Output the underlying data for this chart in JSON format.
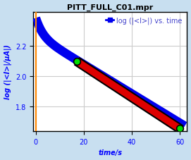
{
  "title": "PITT_FULL_C01.mpr",
  "legend_label": "log (|<I>|) vs. time",
  "xlabel": "time/s",
  "ylabel": "log (|<I>|/µA|)",
  "xlim": [
    -1,
    63
  ],
  "ylim": [
    1.64,
    2.42
  ],
  "yticks": [
    1.8,
    2.0,
    2.2
  ],
  "xticks": [
    0,
    20,
    40,
    60
  ],
  "plot_bg_color": "#ffffff",
  "outer_bg": "#c8dff0",
  "blue_curve_color": "#0000ee",
  "red_fit_color": "#dd0000",
  "orange_vline_color": "#ff8800",
  "green_marker_color": "#00dd00",
  "green_marker_edge": "#000000",
  "marker1_x": 17.0,
  "marker1_y": 2.098,
  "marker2_x": 60.0,
  "marker2_y": 1.658,
  "fit_x_start": 17.0,
  "fit_x_end": 60.5,
  "fit_y_start": 2.098,
  "fit_y_end": 1.651,
  "a1": 55,
  "k1": 0.4,
  "a2": 185,
  "k2": 0.022,
  "title_fontsize": 8,
  "legend_fontsize": 7,
  "axis_label_fontsize": 7,
  "tick_fontsize": 7,
  "grid_color": "#cccccc",
  "title_color": "#000000",
  "legend_color": "#4444cc"
}
